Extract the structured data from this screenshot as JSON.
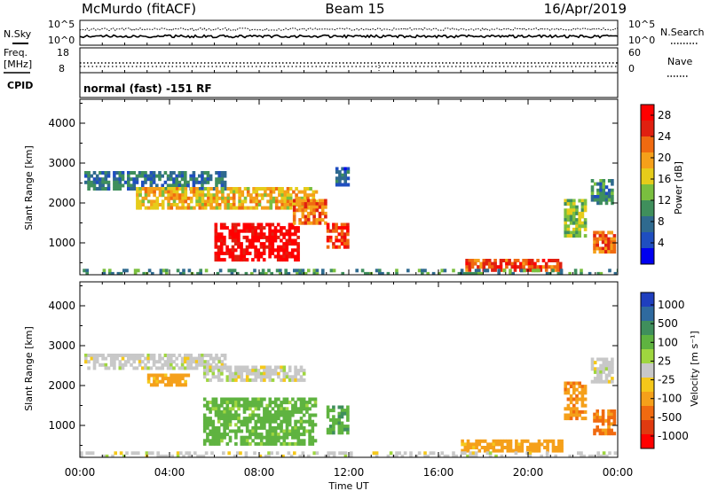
{
  "header": {
    "station": "McMurdo (fitACF)",
    "beam": "Beam 15",
    "date": "16/Apr/2019"
  },
  "noise_panel": {
    "left_label": "N.Sky",
    "right_label": "N.Search",
    "left_ticks": [
      "10^5",
      "10^0"
    ],
    "right_ticks": [
      "10^5",
      "10^0"
    ]
  },
  "freq_panel": {
    "left_label_1": "Freq.",
    "left_label_2": "[MHz]",
    "right_label": "Nave",
    "left_ticks": [
      "18",
      "8"
    ],
    "right_ticks": [
      "60",
      "0"
    ]
  },
  "cpid": {
    "label": "CPID",
    "text": "normal (fast) -151 RF"
  },
  "chart_data": [
    {
      "type": "heatmap",
      "title": "",
      "ylabel": "Slant Range [km]",
      "xlabel": "Time UT",
      "ylim": [
        200,
        4600
      ],
      "xlim": [
        0,
        24
      ],
      "y_ticks": [
        "1000",
        "2000",
        "3000",
        "4000"
      ],
      "x_ticks": [
        "00:00",
        "04:00",
        "08:00",
        "12:00",
        "16:00",
        "20:00",
        "00:00"
      ],
      "colorbar": {
        "label": "Power [dB]",
        "ticks": [
          "4",
          "8",
          "12",
          "16",
          "20",
          "24",
          "28"
        ],
        "range": [
          0,
          30
        ],
        "colors": [
          "#0000f0",
          "#1f4ec0",
          "#2f6a8f",
          "#3f8f5c",
          "#7abf3f",
          "#e6cc1a",
          "#f5a01a",
          "#f06a10",
          "#e02010",
          "#ff0000"
        ]
      },
      "regions": [
        {
          "t0": 0.2,
          "t1": 6.5,
          "r0": 2400,
          "r1": 2800,
          "value": 8
        },
        {
          "t0": 2.5,
          "t1": 10.5,
          "r0": 1900,
          "r1": 2400,
          "value": 18
        },
        {
          "t0": 6.0,
          "t1": 9.8,
          "r0": 600,
          "r1": 1500,
          "value": 29
        },
        {
          "t0": 9.5,
          "t1": 11.0,
          "r0": 1500,
          "r1": 2100,
          "value": 22
        },
        {
          "t0": 11.0,
          "t1": 12.0,
          "r0": 900,
          "r1": 1500,
          "value": 26
        },
        {
          "t0": 11.4,
          "t1": 12.0,
          "r0": 2500,
          "r1": 2900,
          "value": 6
        },
        {
          "t0": 17.2,
          "t1": 21.5,
          "r0": 350,
          "r1": 600,
          "value": 24
        },
        {
          "t0": 21.6,
          "t1": 22.6,
          "r0": 1200,
          "r1": 2100,
          "value": 14
        },
        {
          "t0": 22.8,
          "t1": 23.8,
          "r0": 2000,
          "r1": 2600,
          "value": 9
        },
        {
          "t0": 22.9,
          "t1": 23.8,
          "r0": 800,
          "r1": 1300,
          "value": 22
        },
        {
          "t0": 0.0,
          "t1": 24.0,
          "r0": 200,
          "r1": 350,
          "value": 10
        }
      ]
    },
    {
      "type": "heatmap",
      "title": "",
      "ylabel": "Slant Range [km]",
      "xlabel": "Time UT",
      "ylim": [
        200,
        4600
      ],
      "xlim": [
        0,
        24
      ],
      "y_ticks": [
        "1000",
        "2000",
        "3000",
        "4000"
      ],
      "x_ticks": [
        "00:00",
        "04:00",
        "08:00",
        "12:00",
        "16:00",
        "20:00",
        "00:00"
      ],
      "colorbar": {
        "label": "Velocity [m s⁻¹]",
        "ticks": [
          "1000",
          "500",
          "100",
          "25",
          "-25",
          "-100",
          "-500",
          "-1000"
        ],
        "colors": [
          "#1f3fbf",
          "#2f6a9f",
          "#3f8f5c",
          "#5fb340",
          "#9fd63f",
          "#c8c8c8",
          "#f5c81a",
          "#f5a01a",
          "#f06a10",
          "#e03a10",
          "#ff0000"
        ]
      },
      "regions": [
        {
          "t0": 0.2,
          "t1": 6.5,
          "r0": 2400,
          "r1": 2800,
          "value": 0
        },
        {
          "t0": 3.0,
          "t1": 4.8,
          "r0": 2000,
          "r1": 2300,
          "value": -150
        },
        {
          "t0": 5.5,
          "t1": 10.0,
          "r0": 2100,
          "r1": 2500,
          "value": 0
        },
        {
          "t0": 5.5,
          "t1": 10.5,
          "r0": 500,
          "r1": 1700,
          "value": 150
        },
        {
          "t0": 11.0,
          "t1": 12.0,
          "r0": 800,
          "r1": 1500,
          "value": 200
        },
        {
          "t0": 17.0,
          "t1": 21.5,
          "r0": 350,
          "r1": 650,
          "value": -150
        },
        {
          "t0": 21.6,
          "t1": 22.6,
          "r0": 1200,
          "r1": 2100,
          "value": -200
        },
        {
          "t0": 22.8,
          "t1": 23.8,
          "r0": 2100,
          "r1": 2700,
          "value": 0
        },
        {
          "t0": 22.9,
          "t1": 23.8,
          "r0": 800,
          "r1": 1400,
          "value": -300
        },
        {
          "t0": 0.0,
          "t1": 24.0,
          "r0": 200,
          "r1": 350,
          "value": 0
        }
      ]
    }
  ]
}
